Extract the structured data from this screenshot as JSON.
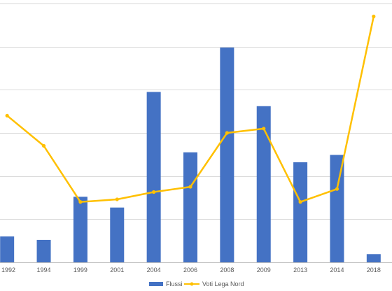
{
  "chart_data": {
    "type": "bar",
    "categories": [
      "1992",
      "1994",
      "1999",
      "2001",
      "2004",
      "2006",
      "2008",
      "2009",
      "2013",
      "2014",
      "2018"
    ],
    "series": [
      {
        "name": "Flussi",
        "type": "bar",
        "color": "#4472C4",
        "values": [
          0.6,
          0.52,
          1.52,
          1.27,
          3.95,
          2.55,
          4.98,
          3.62,
          2.32,
          2.49,
          0.19
        ]
      },
      {
        "name": "Voti Lega Nord",
        "type": "line",
        "color": "#FFC000",
        "values": [
          3.4,
          2.7,
          1.4,
          1.46,
          1.63,
          1.75,
          3.0,
          3.1,
          1.4,
          1.7,
          5.7
        ]
      }
    ],
    "ylim": [
      0,
      6
    ],
    "y_gridlines": [
      0,
      1,
      2,
      3,
      4,
      5,
      6
    ],
    "grid": true,
    "legend": "bottom",
    "title": "",
    "xlabel": "",
    "ylabel": ""
  }
}
